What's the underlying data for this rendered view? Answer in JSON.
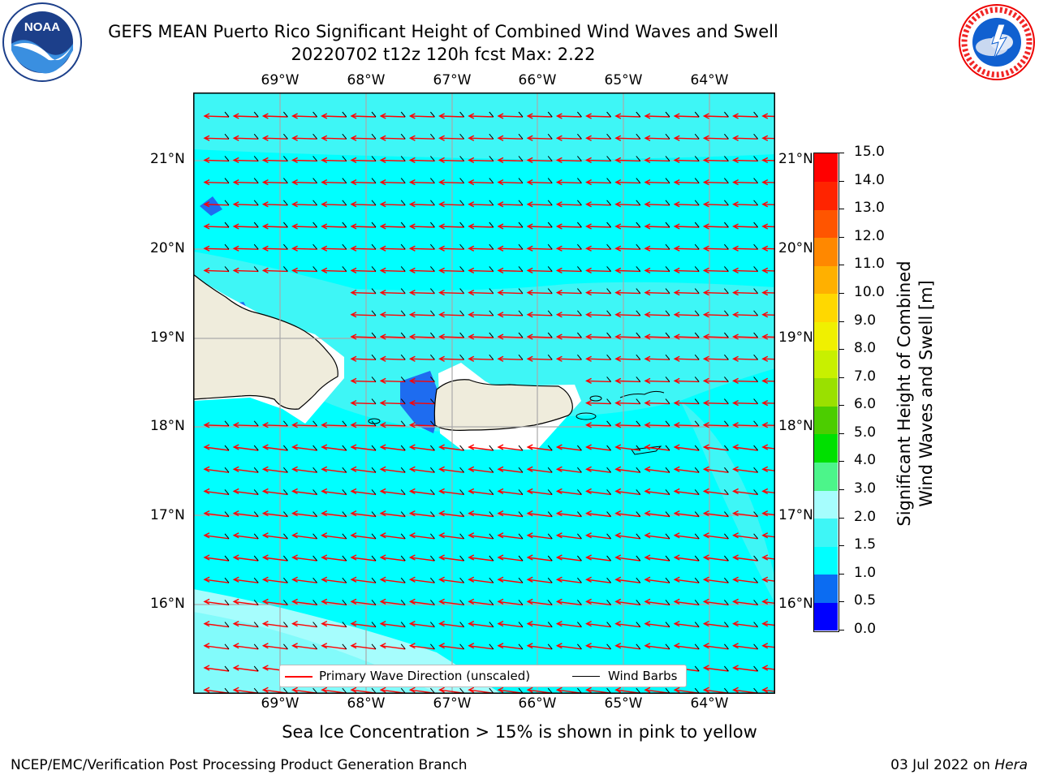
{
  "title_line1": "GEFS MEAN Puerto Rico Significant Height of Combined Wind Waves and Swell",
  "title_line2": "20220702 t12z 120h fcst   Max: 2.22",
  "lon_labels": [
    "69°W",
    "68°W",
    "67°W",
    "66°W",
    "65°W",
    "64°W"
  ],
  "lat_labels": [
    "21°N",
    "20°N",
    "19°N",
    "18°N",
    "17°N",
    "16°N"
  ],
  "colorbar": {
    "label_line1": "Significant Height of Combined",
    "label_line2": "Wind Waves and Swell [m]",
    "ticks": [
      "0.0",
      "0.5",
      "1.0",
      "1.5",
      "2.0",
      "3.0",
      "4.0",
      "5.0",
      "6.0",
      "7.0",
      "8.0",
      "9.0",
      "10.0",
      "11.0",
      "12.0",
      "13.0",
      "14.0",
      "15.0"
    ],
    "colors": [
      "#0000ff",
      "#0b6cf2",
      "#00ffff",
      "#3ef6f6",
      "#a6fdfd",
      "#4cf58a",
      "#00e000",
      "#4ccd00",
      "#9ae000",
      "#c8f000",
      "#f0f000",
      "#ffd800",
      "#ffb000",
      "#ff8800",
      "#ff5500",
      "#ff2400",
      "#ff0000"
    ]
  },
  "legend": {
    "primary": "Primary Wave Direction (unscaled)",
    "barbs": "Wind Barbs"
  },
  "colors": {
    "ocean_main": "#00ffff",
    "ocean_light": "#3ef6f6",
    "ocean_pale": "#a6fdfd",
    "shallow": "#1e6cf0",
    "land": "#efecdc",
    "arrow": "#ff0000"
  },
  "subtitle": "Sea Ice Concentration > 15% is shown in pink to yellow",
  "footer_left": "NCEP/EMC/Verification Post Processing Product Generation Branch",
  "footer_date": "03 Jul 2022 on ",
  "footer_machine": "Hera",
  "logos": {
    "left": "NOAA",
    "right": "NATIONAL WEATHER SERVICE"
  }
}
